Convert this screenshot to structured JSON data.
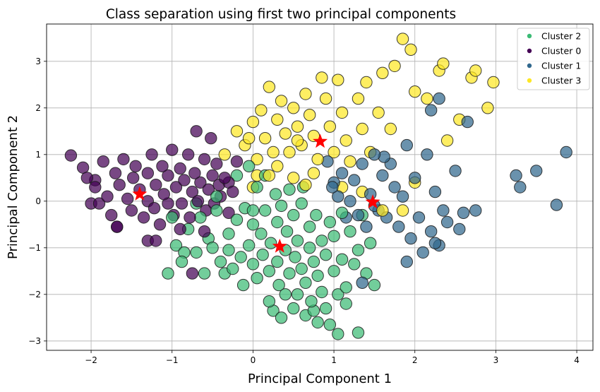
{
  "chart_data": {
    "type": "scatter",
    "title": "Class separation using first two principal components",
    "xlabel": "Principal Component 1",
    "ylabel": "Principal Component 2",
    "xlim": [
      -2.55,
      4.2
    ],
    "ylim": [
      -3.2,
      3.8
    ],
    "xticks": [
      -2,
      -1,
      0,
      1,
      2,
      3,
      4
    ],
    "yticks": [
      -3,
      -2,
      -1,
      0,
      1,
      2,
      3
    ],
    "xtick_labels": [
      "−2",
      "−1",
      "0",
      "1",
      "2",
      "3",
      "4"
    ],
    "ytick_labels": [
      "−3",
      "−2",
      "−1",
      "0",
      "1",
      "2",
      "3"
    ],
    "grid": true,
    "legend_position": "top-right",
    "legend": [
      "Cluster 2",
      "Cluster 0",
      "Cluster 1",
      "Cluster 3"
    ],
    "series": [
      {
        "name": "Cluster 2",
        "color": "#3bbb75",
        "points": [
          [
            -0.95,
            -0.95
          ],
          [
            -0.85,
            -1.1
          ],
          [
            -0.8,
            -0.6
          ],
          [
            -0.7,
            -1.1
          ],
          [
            -0.65,
            -0.35
          ],
          [
            -0.55,
            -0.8
          ],
          [
            -0.5,
            -1.0
          ],
          [
            -0.45,
            -0.2
          ],
          [
            -0.4,
            -1.3
          ],
          [
            -0.35,
            -1.55
          ],
          [
            -0.3,
            -0.7
          ],
          [
            -0.3,
            -1.05
          ],
          [
            -0.25,
            -1.45
          ],
          [
            -0.2,
            -0.4
          ],
          [
            -0.15,
            -1.2
          ],
          [
            -0.12,
            -1.8
          ],
          [
            -0.1,
            -0.15
          ],
          [
            -0.05,
            -0.95
          ],
          [
            0.0,
            -1.35
          ],
          [
            0.0,
            -0.5
          ],
          [
            0.05,
            -1.65
          ],
          [
            0.05,
            0.3
          ],
          [
            0.1,
            -0.7
          ],
          [
            0.12,
            -1.15
          ],
          [
            0.15,
            -0.2
          ],
          [
            0.2,
            -1.5
          ],
          [
            0.2,
            -2.15
          ],
          [
            0.22,
            -0.9
          ],
          [
            0.25,
            -2.35
          ],
          [
            0.3,
            -0.45
          ],
          [
            0.3,
            -1.3
          ],
          [
            0.32,
            -1.8
          ],
          [
            0.35,
            -0.1
          ],
          [
            0.4,
            -1.05
          ],
          [
            0.4,
            -2.0
          ],
          [
            0.42,
            -0.65
          ],
          [
            0.45,
            -1.55
          ],
          [
            0.5,
            -0.3
          ],
          [
            0.5,
            -2.3
          ],
          [
            0.52,
            -1.2
          ],
          [
            0.55,
            -0.85
          ],
          [
            0.55,
            -2.0
          ],
          [
            0.6,
            -1.45
          ],
          [
            0.6,
            -0.05
          ],
          [
            0.65,
            -2.45
          ],
          [
            0.65,
            -1.75
          ],
          [
            0.7,
            -0.55
          ],
          [
            0.7,
            -1.0
          ],
          [
            0.72,
            -2.15
          ],
          [
            0.75,
            -1.3
          ],
          [
            0.78,
            -0.3
          ],
          [
            0.8,
            -2.6
          ],
          [
            0.8,
            -1.6
          ],
          [
            0.85,
            -0.85
          ],
          [
            0.85,
            -1.95
          ],
          [
            0.9,
            -2.3
          ],
          [
            0.9,
            -1.15
          ],
          [
            0.95,
            -0.45
          ],
          [
            0.95,
            -2.65
          ],
          [
            1.0,
            -1.5
          ],
          [
            1.0,
            -0.75
          ],
          [
            1.05,
            -2.0
          ],
          [
            1.05,
            -2.85
          ],
          [
            1.1,
            -0.25
          ],
          [
            1.1,
            -1.25
          ],
          [
            1.15,
            -1.85
          ],
          [
            1.15,
            -2.2
          ],
          [
            1.2,
            -0.65
          ],
          [
            1.25,
            -1.35
          ],
          [
            1.3,
            -1.05
          ],
          [
            1.3,
            -2.82
          ],
          [
            1.35,
            -0.3
          ],
          [
            1.4,
            -1.55
          ],
          [
            1.45,
            -0.9
          ],
          [
            1.5,
            -1.8
          ],
          [
            -1.0,
            -0.35
          ],
          [
            -0.6,
            -1.55
          ],
          [
            -0.2,
            0.55
          ],
          [
            0.15,
            0.55
          ],
          [
            0.28,
            0.15
          ],
          [
            -0.05,
            0.75
          ],
          [
            0.62,
            0.3
          ],
          [
            0.45,
            0.25
          ],
          [
            -0.45,
            0.1
          ],
          [
            -0.7,
            -0.05
          ],
          [
            -0.88,
            -1.3
          ],
          [
            -1.05,
            -1.55
          ],
          [
            0.0,
            -0.2
          ],
          [
            0.35,
            -2.5
          ],
          [
            0.75,
            -2.35
          ]
        ]
      },
      {
        "name": "Cluster 0",
        "color": "#440154",
        "points": [
          [
            -2.25,
            0.98
          ],
          [
            -2.1,
            0.72
          ],
          [
            -2.05,
            0.5
          ],
          [
            -1.95,
            0.3
          ],
          [
            -1.9,
            -0.05
          ],
          [
            -1.85,
            0.85
          ],
          [
            -1.8,
            0.1
          ],
          [
            -1.75,
            -0.3
          ],
          [
            -1.7,
            0.6
          ],
          [
            -1.68,
            -0.55
          ],
          [
            -1.65,
            0.35
          ],
          [
            -1.6,
            0.9
          ],
          [
            -1.55,
            0.05
          ],
          [
            -1.5,
            -0.2
          ],
          [
            -1.48,
            0.5
          ],
          [
            -1.45,
            0.75
          ],
          [
            -1.4,
            0.25
          ],
          [
            -1.35,
            -0.35
          ],
          [
            -1.3,
            0.0
          ],
          [
            -1.3,
            0.6
          ],
          [
            -1.25,
            1.0
          ],
          [
            -1.22,
            -0.15
          ],
          [
            -1.2,
            0.35
          ],
          [
            -1.15,
            -0.5
          ],
          [
            -1.12,
            0.75
          ],
          [
            -1.1,
            0.15
          ],
          [
            -1.05,
            -0.05
          ],
          [
            -1.05,
            0.55
          ],
          [
            -1.0,
            1.1
          ],
          [
            -0.98,
            -0.3
          ],
          [
            -0.95,
            0.3
          ],
          [
            -0.9,
            0.7
          ],
          [
            -0.88,
            -0.05
          ],
          [
            -0.85,
            0.45
          ],
          [
            -0.8,
            1.0
          ],
          [
            -0.78,
            -0.35
          ],
          [
            -0.75,
            0.2
          ],
          [
            -0.72,
            0.6
          ],
          [
            -0.7,
            1.5
          ],
          [
            -0.68,
            0.0
          ],
          [
            -0.65,
            0.4
          ],
          [
            -0.6,
            0.9
          ],
          [
            -0.58,
            -0.2
          ],
          [
            -0.55,
            0.25
          ],
          [
            -0.52,
            1.35
          ],
          [
            -0.5,
            0.55
          ],
          [
            -0.48,
            -0.05
          ],
          [
            -0.45,
            0.8
          ],
          [
            -0.42,
            0.35
          ],
          [
            -0.4,
            0.1
          ],
          [
            -0.35,
            0.5
          ],
          [
            -0.3,
            -0.25
          ],
          [
            -0.25,
            0.2
          ],
          [
            -0.2,
            0.85
          ],
          [
            -1.95,
            0.45
          ],
          [
            -2.0,
            -0.05
          ],
          [
            -1.3,
            -0.85
          ],
          [
            -1.2,
            -0.85
          ],
          [
            -0.9,
            -0.6
          ],
          [
            -0.6,
            -0.65
          ],
          [
            -0.75,
            -1.55
          ],
          [
            -1.68,
            -0.55
          ],
          [
            -0.3,
            0.4
          ]
        ]
      },
      {
        "name": "Cluster 1",
        "color": "#31688e",
        "points": [
          [
            1.0,
            0.4
          ],
          [
            1.05,
            0.1
          ],
          [
            1.1,
            0.6
          ],
          [
            1.15,
            -0.35
          ],
          [
            1.2,
            0.0
          ],
          [
            1.25,
            0.45
          ],
          [
            1.3,
            -0.3
          ],
          [
            1.35,
            0.8
          ],
          [
            1.4,
            -0.55
          ],
          [
            1.45,
            0.15
          ],
          [
            1.5,
            1.0
          ],
          [
            1.55,
            -0.2
          ],
          [
            1.6,
            0.55
          ],
          [
            1.65,
            -0.35
          ],
          [
            1.7,
            0.8
          ],
          [
            1.75,
            0.3
          ],
          [
            1.8,
            -0.55
          ],
          [
            1.85,
            0.1
          ],
          [
            1.9,
            1.2
          ],
          [
            1.95,
            -0.8
          ],
          [
            2.0,
            0.5
          ],
          [
            2.05,
            -0.35
          ],
          [
            2.1,
            -1.1
          ],
          [
            2.15,
            1.0
          ],
          [
            2.2,
            -0.65
          ],
          [
            2.25,
            0.2
          ],
          [
            2.3,
            -0.95
          ],
          [
            2.35,
            -0.2
          ],
          [
            2.4,
            -0.45
          ],
          [
            2.5,
            0.65
          ],
          [
            2.55,
            -0.6
          ],
          [
            2.6,
            -0.25
          ],
          [
            2.65,
            1.7
          ],
          [
            2.75,
            -0.2
          ],
          [
            2.2,
            1.95
          ],
          [
            2.3,
            2.2
          ],
          [
            3.25,
            0.55
          ],
          [
            3.5,
            0.65
          ],
          [
            3.3,
            0.3
          ],
          [
            3.75,
            -0.08
          ],
          [
            3.87,
            1.05
          ],
          [
            1.9,
            -1.3
          ],
          [
            2.25,
            -0.9
          ],
          [
            1.35,
            -1.75
          ],
          [
            1.5,
            -0.1
          ],
          [
            1.62,
            0.95
          ],
          [
            0.98,
            0.3
          ],
          [
            0.92,
            0.85
          ]
        ]
      },
      {
        "name": "Cluster 3",
        "color": "#fde725",
        "points": [
          [
            -0.35,
            1.0
          ],
          [
            -0.2,
            1.5
          ],
          [
            -0.1,
            1.2
          ],
          [
            0.0,
            1.7
          ],
          [
            0.05,
            0.9
          ],
          [
            0.1,
            1.95
          ],
          [
            0.15,
            1.35
          ],
          [
            0.2,
            2.45
          ],
          [
            0.25,
            1.05
          ],
          [
            0.3,
            1.75
          ],
          [
            0.35,
            2.15
          ],
          [
            0.4,
            1.45
          ],
          [
            0.45,
            1.05
          ],
          [
            0.5,
            2.0
          ],
          [
            0.55,
            1.6
          ],
          [
            0.6,
            1.2
          ],
          [
            0.65,
            2.3
          ],
          [
            0.7,
            1.85
          ],
          [
            0.75,
            1.4
          ],
          [
            0.8,
            0.9
          ],
          [
            0.85,
            2.65
          ],
          [
            0.9,
            2.2
          ],
          [
            0.95,
            1.6
          ],
          [
            1.0,
            1.05
          ],
          [
            1.05,
            2.6
          ],
          [
            1.1,
            1.9
          ],
          [
            1.15,
            1.3
          ],
          [
            1.2,
            0.85
          ],
          [
            1.3,
            2.2
          ],
          [
            1.35,
            1.55
          ],
          [
            1.4,
            2.55
          ],
          [
            1.45,
            1.05
          ],
          [
            1.55,
            1.9
          ],
          [
            1.6,
            2.75
          ],
          [
            1.7,
            1.55
          ],
          [
            1.75,
            2.9
          ],
          [
            1.85,
            3.48
          ],
          [
            1.95,
            3.25
          ],
          [
            2.0,
            2.35
          ],
          [
            2.15,
            2.2
          ],
          [
            2.3,
            2.8
          ],
          [
            2.4,
            1.3
          ],
          [
            2.55,
            1.75
          ],
          [
            2.7,
            2.65
          ],
          [
            2.75,
            2.8
          ],
          [
            2.9,
            2.0
          ],
          [
            2.97,
            2.55
          ],
          [
            2.35,
            2.95
          ],
          [
            0.5,
            0.5
          ],
          [
            0.65,
            0.35
          ],
          [
            0.0,
            0.3
          ],
          [
            0.3,
            0.75
          ],
          [
            0.75,
            0.6
          ],
          [
            1.1,
            0.3
          ],
          [
            1.35,
            0.2
          ],
          [
            1.85,
            -0.2
          ],
          [
            2.0,
            0.4
          ],
          [
            1.6,
            -0.2
          ],
          [
            0.05,
            0.55
          ],
          [
            0.2,
            0.55
          ],
          [
            0.55,
            1.3
          ],
          [
            -0.05,
            1.35
          ]
        ]
      }
    ],
    "centroids": {
      "color": "#ff0000",
      "points": [
        [
          0.33,
          -0.97
        ],
        [
          -1.4,
          0.15
        ],
        [
          1.48,
          -0.02
        ],
        [
          0.83,
          1.28
        ]
      ]
    }
  }
}
